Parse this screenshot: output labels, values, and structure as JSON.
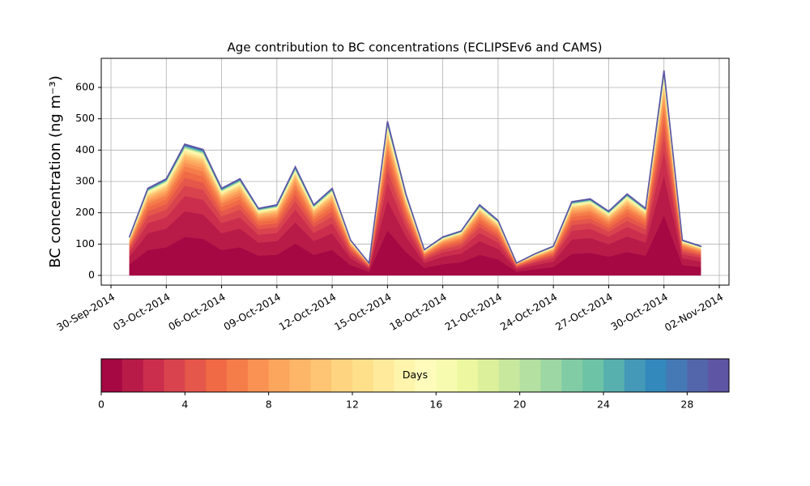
{
  "chart_data": {
    "type": "stacked_area",
    "title": "Age contribution to BC concentrations (ECLIPSEv6 and CAMS)",
    "y_label": "BC concentration (ng m⁻³)",
    "x": [
      "2014-10-01",
      "2014-10-02",
      "2014-10-03",
      "2014-10-04",
      "2014-10-05",
      "2014-10-06",
      "2014-10-07",
      "2014-10-08",
      "2014-10-09",
      "2014-10-10",
      "2014-10-11",
      "2014-10-12",
      "2014-10-13",
      "2014-10-14",
      "2014-10-15",
      "2014-10-16",
      "2014-10-17",
      "2014-10-18",
      "2014-10-19",
      "2014-10-20",
      "2014-10-21",
      "2014-10-22",
      "2014-10-23",
      "2014-10-24",
      "2014-10-25",
      "2014-10-26",
      "2014-10-27",
      "2014-10-28",
      "2014-10-29",
      "2014-10-30",
      "2014-10-31",
      "2014-11-01"
    ],
    "xlim": [
      "2014-09-30",
      "2014-11-02"
    ],
    "xticks": [
      {
        "value": "2014-09-30",
        "label": "30-Sep-2014"
      },
      {
        "value": "2014-10-03",
        "label": "03-Oct-2014"
      },
      {
        "value": "2014-10-06",
        "label": "06-Oct-2014"
      },
      {
        "value": "2014-10-09",
        "label": "09-Oct-2014"
      },
      {
        "value": "2014-10-12",
        "label": "12-Oct-2014"
      },
      {
        "value": "2014-10-15",
        "label": "15-Oct-2014"
      },
      {
        "value": "2014-10-18",
        "label": "18-Oct-2014"
      },
      {
        "value": "2014-10-21",
        "label": "21-Oct-2014"
      },
      {
        "value": "2014-10-24",
        "label": "24-Oct-2014"
      },
      {
        "value": "2014-10-27",
        "label": "27-Oct-2014"
      },
      {
        "value": "2014-10-30",
        "label": "30-Oct-2014"
      },
      {
        "value": "2014-11-02",
        "label": "02-Nov-2014"
      }
    ],
    "ylim": [
      -31,
      693
    ],
    "yticks": [
      0,
      100,
      200,
      300,
      400,
      500,
      600
    ],
    "grid": true,
    "series": [
      {
        "color": "#a50843",
        "values": [
          36,
          81,
          90,
          123,
          117,
          81,
          90,
          63,
          66,
          102,
          66,
          81,
          33,
          12,
          144,
          75,
          24,
          36,
          42,
          66,
          51,
          12,
          20,
          27,
          69,
          72,
          60,
          75,
          63,
          192,
          33,
          27
        ]
      },
      {
        "color": "#b81b48",
        "values": [
          24,
          54,
          60,
          82,
          78,
          54,
          60,
          42,
          44,
          68,
          44,
          54,
          22,
          8,
          96,
          50,
          16,
          24,
          28,
          44,
          34,
          8,
          13,
          18,
          46,
          48,
          40,
          50,
          42,
          128,
          22,
          18
        ]
      },
      {
        "color": "#cb2e4d",
        "values": [
          14,
          32,
          36,
          49,
          47,
          32,
          36,
          25,
          26,
          41,
          26,
          32,
          13,
          5,
          58,
          30,
          10,
          14,
          17,
          26,
          20,
          5,
          8,
          11,
          28,
          29,
          24,
          30,
          25,
          77,
          13,
          11
        ]
      },
      {
        "color": "#d8434e",
        "values": [
          10,
          22,
          24,
          33,
          31,
          22,
          24,
          17,
          18,
          27,
          18,
          22,
          9,
          3,
          38,
          20,
          6,
          10,
          11,
          18,
          14,
          3,
          5,
          7,
          18,
          19,
          16,
          20,
          17,
          51,
          9,
          7
        ]
      },
      {
        "color": "#e5574a",
        "values": [
          7,
          16,
          18,
          25,
          23,
          16,
          18,
          13,
          13,
          20,
          13,
          16,
          7,
          2,
          29,
          15,
          5,
          7,
          8,
          13,
          10,
          2,
          4,
          5,
          14,
          14,
          12,
          15,
          13,
          38,
          7,
          5
        ]
      },
      {
        "color": "#f06a45",
        "values": [
          6,
          14,
          15,
          21,
          20,
          14,
          15,
          11,
          11,
          17,
          11,
          14,
          6,
          2,
          24,
          13,
          4,
          6,
          7,
          11,
          9,
          2,
          3,
          5,
          12,
          12,
          10,
          13,
          11,
          32,
          6,
          5
        ]
      },
      {
        "color": "#f57d4a",
        "values": [
          5,
          11,
          12,
          16,
          16,
          11,
          12,
          8,
          9,
          14,
          9,
          11,
          4,
          2,
          19,
          10,
          3,
          5,
          6,
          9,
          7,
          2,
          3,
          4,
          9,
          10,
          8,
          10,
          8,
          26,
          4,
          4
        ]
      },
      {
        "color": "#f99253",
        "values": [
          4,
          8,
          9,
          12,
          12,
          8,
          9,
          6,
          7,
          10,
          7,
          8,
          3,
          1,
          14,
          8,
          2,
          4,
          4,
          7,
          5,
          1,
          2,
          3,
          7,
          7,
          6,
          8,
          6,
          19,
          3,
          3
        ]
      },
      {
        "color": "#fca55d",
        "values": [
          3,
          7,
          8,
          10,
          10,
          7,
          8,
          5,
          6,
          9,
          6,
          7,
          3,
          1,
          12,
          6,
          2,
          3,
          4,
          6,
          4,
          1,
          2,
          2,
          6,
          6,
          5,
          6,
          5,
          16,
          3,
          2
        ]
      },
      {
        "color": "#fdb667",
        "values": [
          2,
          5,
          6,
          8,
          8,
          5,
          6,
          4,
          4,
          7,
          4,
          5,
          2,
          1,
          10,
          5,
          2,
          2,
          3,
          4,
          3,
          1,
          1,
          2,
          5,
          5,
          4,
          5,
          4,
          13,
          2,
          2
        ]
      },
      {
        "color": "#fdc574",
        "values": [
          2,
          4,
          5,
          6,
          6,
          4,
          5,
          3,
          3,
          5,
          3,
          4,
          2,
          1,
          7,
          4,
          1,
          2,
          2,
          3,
          3,
          1,
          1,
          1,
          3,
          4,
          3,
          4,
          3,
          10,
          2,
          1
        ]
      },
      {
        "color": "#fed480",
        "values": [
          1,
          3,
          3,
          4,
          4,
          3,
          3,
          2,
          2,
          3,
          2,
          3,
          1,
          0,
          5,
          3,
          1,
          1,
          1,
          2,
          2,
          0,
          1,
          1,
          2,
          2,
          2,
          3,
          2,
          6,
          1,
          1
        ]
      },
      {
        "color": "#fee08b",
        "values": [
          1,
          3,
          3,
          4,
          4,
          3,
          3,
          2,
          2,
          3,
          2,
          3,
          1,
          0,
          5,
          3,
          1,
          1,
          1,
          2,
          2,
          0,
          1,
          1,
          2,
          2,
          2,
          3,
          2,
          6,
          1,
          1
        ]
      },
      {
        "color": "#feea9a",
        "values": [
          1,
          3,
          3,
          4,
          4,
          3,
          3,
          2,
          2,
          3,
          2,
          3,
          1,
          0,
          5,
          3,
          1,
          1,
          1,
          2,
          2,
          0,
          1,
          1,
          2,
          2,
          2,
          3,
          2,
          6,
          1,
          1
        ]
      },
      {
        "color": "#fff4ab",
        "values": [
          1,
          3,
          3,
          4,
          4,
          3,
          3,
          2,
          2,
          3,
          2,
          3,
          1,
          0,
          5,
          3,
          1,
          1,
          1,
          2,
          2,
          0,
          1,
          1,
          2,
          2,
          2,
          3,
          2,
          6,
          1,
          1
        ]
      },
      {
        "color": "#fffcbb",
        "values": [
          0.4,
          0.8,
          0.9,
          1.2,
          1.2,
          0.8,
          0.9,
          0.6,
          0.7,
          1,
          0.7,
          0.8,
          0.3,
          0.1,
          1.4,
          0.8,
          0.2,
          0.4,
          0.4,
          0.7,
          0.5,
          0.1,
          0.2,
          0.3,
          0.7,
          0.7,
          0.6,
          0.8,
          0.6,
          1.9,
          0.3,
          0.3
        ]
      },
      {
        "color": "#f7fbb0",
        "values": [
          0.4,
          0.8,
          0.9,
          1.2,
          1.2,
          0.8,
          0.9,
          0.6,
          0.7,
          1,
          0.7,
          0.8,
          0.3,
          0.1,
          1.4,
          0.8,
          0.2,
          0.4,
          0.4,
          0.7,
          0.5,
          0.1,
          0.2,
          0.3,
          0.7,
          0.7,
          0.6,
          0.8,
          0.6,
          1.9,
          0.3,
          0.3
        ]
      },
      {
        "color": "#ecf7a0",
        "values": [
          0.4,
          0.8,
          0.9,
          1.2,
          1.2,
          0.8,
          0.9,
          0.6,
          0.7,
          1,
          0.7,
          0.8,
          0.3,
          0.1,
          1.4,
          0.8,
          0.2,
          0.4,
          0.4,
          0.7,
          0.5,
          0.1,
          0.2,
          0.3,
          0.7,
          0.7,
          0.6,
          0.8,
          0.6,
          1.9,
          0.3,
          0.3
        ]
      },
      {
        "color": "#dcf09b",
        "values": [
          0.4,
          0.8,
          0.9,
          1.2,
          1.2,
          0.8,
          0.9,
          0.6,
          0.7,
          1,
          0.7,
          0.8,
          0.3,
          0.1,
          1.4,
          0.8,
          0.2,
          0.4,
          0.4,
          0.7,
          0.5,
          0.1,
          0.2,
          0.3,
          0.7,
          0.7,
          0.6,
          0.8,
          0.6,
          1.9,
          0.3,
          0.3
        ]
      },
      {
        "color": "#c8e89e",
        "values": [
          0.4,
          0.8,
          0.9,
          1.2,
          1.2,
          0.8,
          0.9,
          0.6,
          0.7,
          1,
          0.7,
          0.8,
          0.3,
          0.1,
          1.4,
          0.8,
          0.2,
          0.4,
          0.4,
          0.7,
          0.5,
          0.1,
          0.2,
          0.3,
          0.7,
          0.7,
          0.6,
          0.8,
          0.6,
          1.9,
          0.3,
          0.3
        ]
      },
      {
        "color": "#b4e0a2",
        "values": [
          0.4,
          0.8,
          0.9,
          1.2,
          1.2,
          0.8,
          0.9,
          0.6,
          0.7,
          1,
          0.7,
          0.8,
          0.3,
          0.1,
          1.4,
          0.8,
          0.2,
          0.4,
          0.4,
          0.7,
          0.5,
          0.1,
          0.2,
          0.3,
          0.7,
          0.7,
          0.6,
          0.8,
          0.6,
          1.9,
          0.3,
          0.3
        ]
      },
      {
        "color": "#9cd7a4",
        "values": [
          0.4,
          0.8,
          0.9,
          1.2,
          1.2,
          0.8,
          0.9,
          0.6,
          0.7,
          1,
          0.7,
          0.8,
          0.3,
          0.1,
          1.4,
          0.8,
          0.2,
          0.4,
          0.4,
          0.7,
          0.5,
          0.1,
          0.2,
          0.3,
          0.7,
          0.7,
          0.6,
          0.8,
          0.6,
          1.9,
          0.3,
          0.3
        ]
      },
      {
        "color": "#82cca5",
        "values": [
          0.4,
          0.8,
          0.9,
          1.2,
          1.2,
          0.8,
          0.9,
          0.6,
          0.7,
          1,
          0.7,
          0.8,
          0.3,
          0.1,
          1.4,
          0.8,
          0.2,
          0.4,
          0.4,
          0.7,
          0.5,
          0.1,
          0.2,
          0.3,
          0.7,
          0.7,
          0.6,
          0.8,
          0.6,
          1.9,
          0.3,
          0.3
        ]
      },
      {
        "color": "#6cc3a6",
        "values": [
          0.4,
          0.8,
          0.9,
          1.2,
          1.2,
          0.8,
          0.9,
          0.6,
          0.7,
          1,
          0.7,
          0.8,
          0.3,
          0.1,
          1.4,
          0.8,
          0.2,
          0.4,
          0.4,
          0.7,
          0.5,
          0.1,
          0.2,
          0.3,
          0.7,
          0.7,
          0.6,
          0.8,
          0.6,
          1.9,
          0.3,
          0.3
        ]
      },
      {
        "color": "#57afae",
        "values": [
          0.4,
          0.8,
          0.9,
          1.2,
          1.2,
          0.8,
          0.9,
          0.6,
          0.7,
          1,
          0.7,
          0.8,
          0.3,
          0.1,
          1.4,
          0.8,
          0.2,
          0.4,
          0.4,
          0.7,
          0.5,
          0.1,
          0.2,
          0.3,
          0.7,
          0.7,
          0.6,
          0.8,
          0.6,
          1.9,
          0.3,
          0.3
        ]
      },
      {
        "color": "#4399b7",
        "values": [
          0.4,
          0.8,
          0.9,
          1.2,
          1.2,
          0.8,
          0.9,
          0.6,
          0.7,
          1,
          0.7,
          0.8,
          0.3,
          0.1,
          1.4,
          0.8,
          0.2,
          0.4,
          0.4,
          0.7,
          0.5,
          0.1,
          0.2,
          0.3,
          0.7,
          0.7,
          0.6,
          0.8,
          0.6,
          1.9,
          0.3,
          0.3
        ]
      },
      {
        "color": "#3388bc",
        "values": [
          0.4,
          0.8,
          0.9,
          1.2,
          1.2,
          0.8,
          0.9,
          0.6,
          0.7,
          1,
          0.7,
          0.8,
          0.3,
          0.1,
          1.4,
          0.8,
          0.2,
          0.4,
          0.4,
          0.7,
          0.5,
          0.1,
          0.2,
          0.3,
          0.7,
          0.7,
          0.6,
          0.8,
          0.6,
          1.9,
          0.3,
          0.3
        ]
      },
      {
        "color": "#4479b5",
        "values": [
          0.4,
          0.8,
          0.9,
          1.2,
          1.2,
          0.8,
          0.9,
          0.6,
          0.7,
          1,
          0.7,
          0.8,
          0.3,
          0.1,
          1.4,
          0.8,
          0.2,
          0.4,
          0.4,
          0.7,
          0.5,
          0.1,
          0.2,
          0.3,
          0.7,
          0.7,
          0.6,
          0.8,
          0.6,
          1.9,
          0.3,
          0.3
        ]
      },
      {
        "color": "#5366ac",
        "values": [
          0.4,
          0.8,
          0.9,
          1.2,
          1.2,
          0.8,
          0.9,
          0.6,
          0.7,
          1,
          0.7,
          0.8,
          0.3,
          0.1,
          1.4,
          0.8,
          0.2,
          0.4,
          0.4,
          0.7,
          0.5,
          0.1,
          0.2,
          0.3,
          0.7,
          0.7,
          0.6,
          0.8,
          0.6,
          1.9,
          0.3,
          0.3
        ]
      },
      {
        "color": "#5e55a4",
        "values": [
          0.4,
          0.8,
          0.9,
          1.2,
          1.2,
          0.8,
          0.9,
          0.6,
          0.7,
          1,
          0.7,
          0.8,
          0.3,
          0.1,
          1.4,
          0.8,
          0.2,
          0.4,
          0.4,
          0.7,
          0.5,
          0.1,
          0.2,
          0.3,
          0.7,
          0.7,
          0.6,
          0.8,
          0.6,
          1.9,
          0.3,
          0.3
        ]
      }
    ],
    "colorbar": {
      "label": "Days",
      "lim": [
        0,
        30
      ],
      "ticks": [
        0,
        4,
        8,
        12,
        16,
        20,
        24,
        28
      ]
    }
  }
}
